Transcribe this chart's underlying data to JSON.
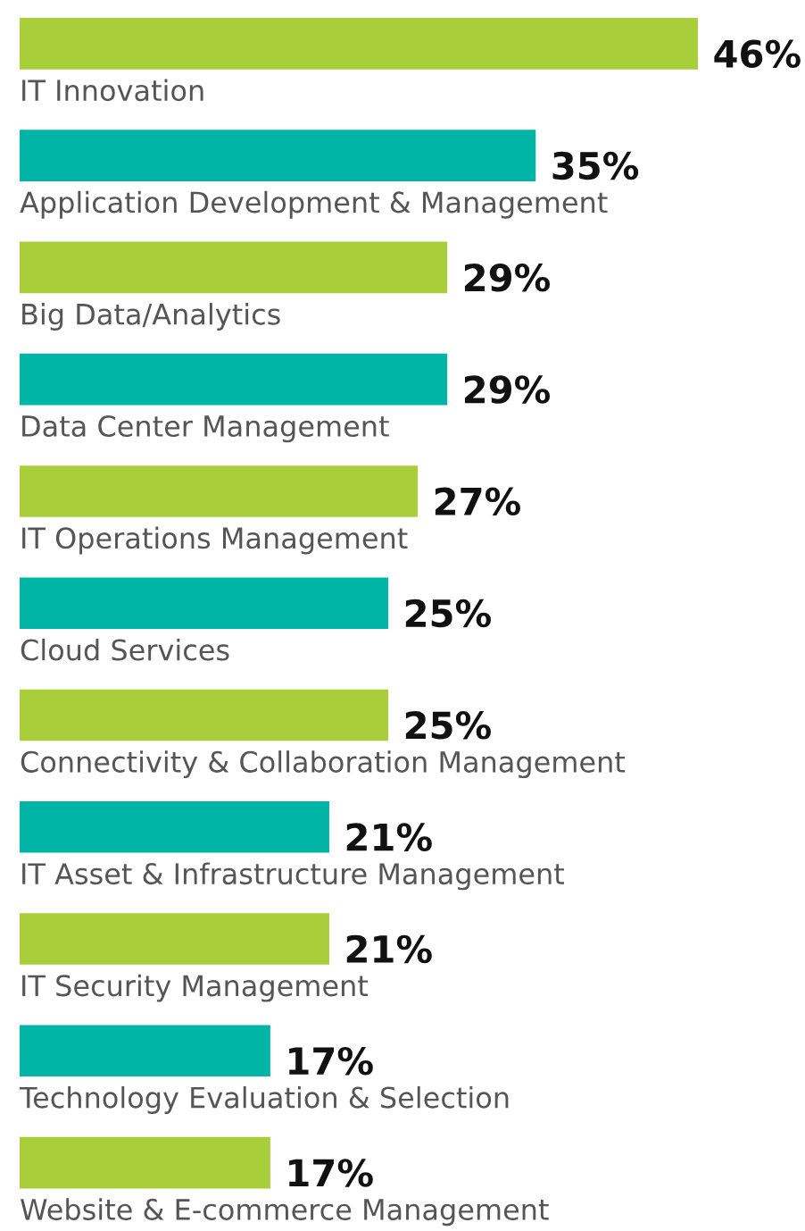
{
  "chart_data": {
    "type": "bar",
    "orientation": "horizontal",
    "categories": [
      "IT Innovation",
      "Application Development & Management",
      "Big Data/Analytics",
      "Data Center Management",
      "IT Operations Management",
      "Cloud Services",
      "Connectivity & Collaboration Management",
      "IT Asset & Infrastructure Management",
      "IT Security Management",
      "Technology Evaluation & Selection",
      "Website & E-commerce Management"
    ],
    "values": [
      46,
      35,
      29,
      29,
      27,
      25,
      25,
      21,
      21,
      17,
      17
    ],
    "value_labels": [
      "46%",
      "35%",
      "29%",
      "29%",
      "27%",
      "25%",
      "25%",
      "21%",
      "21%",
      "17%",
      "17%"
    ],
    "colors": [
      "#a8cf3a",
      "#00b5a5",
      "#a8cf3a",
      "#00b5a5",
      "#a8cf3a",
      "#00b5a5",
      "#a8cf3a",
      "#00b5a5",
      "#a8cf3a",
      "#00b5a5",
      "#a8cf3a"
    ]
  }
}
